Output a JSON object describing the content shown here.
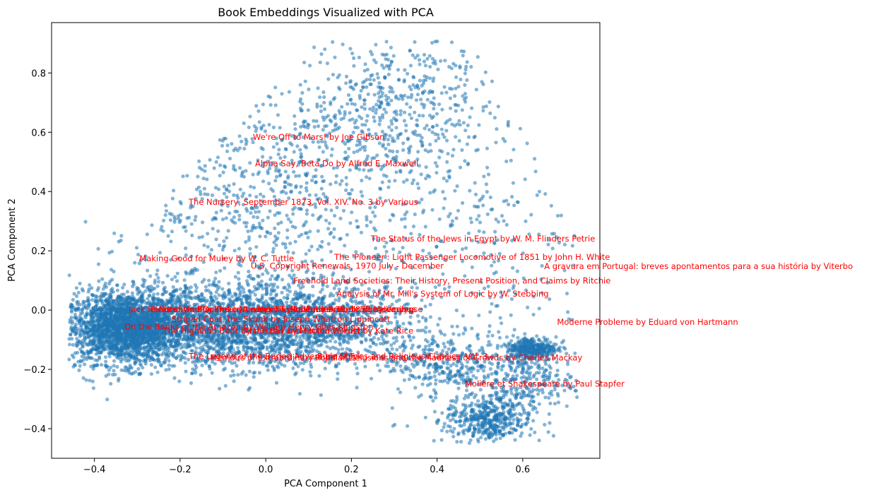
{
  "chart_data": {
    "type": "scatter",
    "title": "Book Embeddings Visualized with PCA",
    "xlabel": "PCA Component 1",
    "ylabel": "PCA Component 2",
    "xlim": [
      -0.5,
      0.78
    ],
    "ylim": [
      -0.5,
      0.97
    ],
    "x_ticks": [
      -0.4,
      -0.2,
      0.0,
      0.2,
      0.4,
      0.6
    ],
    "x_tick_labels": [
      "−0.4",
      "−0.2",
      "0.0",
      "0.2",
      "0.4",
      "0.6"
    ],
    "y_ticks": [
      -0.4,
      -0.2,
      0.0,
      0.2,
      0.4,
      0.6,
      0.8
    ],
    "y_tick_labels": [
      "−0.4",
      "−0.2",
      "0.0",
      "0.2",
      "0.4",
      "0.6",
      "0.8"
    ],
    "grid": false,
    "point_color": "#1f77b4",
    "label_color": "#ff0000",
    "clusters": [
      {
        "cx": -0.33,
        "cy": -0.06,
        "sx": 0.07,
        "sy": 0.06,
        "n": 2200
      },
      {
        "cx": -0.12,
        "cy": -0.05,
        "sx": 0.13,
        "sy": 0.07,
        "n": 1800
      },
      {
        "cx": 0.12,
        "cy": -0.05,
        "sx": 0.12,
        "sy": 0.07,
        "n": 1000
      },
      {
        "cx": 0.0,
        "cy": 0.4,
        "sx": 0.2,
        "sy": 0.2,
        "n": 900
      },
      {
        "cx": 0.3,
        "cy": 0.7,
        "sx": 0.12,
        "sy": 0.12,
        "n": 500
      },
      {
        "cx": 0.52,
        "cy": -0.37,
        "sx": 0.05,
        "sy": 0.04,
        "n": 450
      },
      {
        "cx": 0.62,
        "cy": -0.13,
        "sx": 0.03,
        "sy": 0.02,
        "n": 350
      },
      {
        "cx": 0.6,
        "cy": -0.24,
        "sx": 0.06,
        "sy": 0.05,
        "n": 250
      },
      {
        "cx": 0.42,
        "cy": -0.18,
        "sx": 0.07,
        "sy": 0.05,
        "n": 300
      },
      {
        "cx": 0.5,
        "cy": 0.2,
        "sx": 0.15,
        "sy": 0.25,
        "n": 300
      }
    ],
    "annotations": [
      {
        "text": "We're Off to Mars! by Joe Gibson",
        "x": -0.03,
        "y": 0.575
      },
      {
        "text": "Alpha Say, Beta Do by Alfred E. Maxwell",
        "x": -0.025,
        "y": 0.485
      },
      {
        "text": "The Nursery, September 1873, Vol. XIV. No. 3 by Various",
        "x": -0.18,
        "y": 0.355
      },
      {
        "text": "The Status of the Jews in Egypt by W. M. Flinders Petrie",
        "x": 0.245,
        "y": 0.232
      },
      {
        "text": "The 'Pioneer': Light Passenger Locomotive of 1851 by John H. White",
        "x": 0.16,
        "y": 0.17
      },
      {
        "text": "Making Good for Muley by W. C. Tuttle",
        "x": -0.295,
        "y": 0.165
      },
      {
        "text": "U.S. Copyright Renewals, 1970 July - December",
        "x": -0.035,
        "y": 0.14
      },
      {
        "text": "A gravura em Portugal: breves apontamentos para a sua história by Viterbo",
        "x": 0.65,
        "y": 0.138
      },
      {
        "text": "Freehold Land Societies: Their History, Present Position, and Claims by Ritchie",
        "x": 0.065,
        "y": 0.09
      },
      {
        "text": "Analysis of Mr. Mill's System of Logic by W. Stebbing",
        "x": 0.165,
        "y": 0.045
      },
      {
        "text": "Jack Harkaway's Boy Tinker Among The Turks by Bracebridge Hemyng",
        "x": -0.32,
        "y": -0.007
      },
      {
        "text": "Birds of the Rockies by Leander Sylvester Keyser",
        "x": -0.27,
        "y": -0.007
      },
      {
        "text": "Notes and Queries, Number 57, November 30, 1850 by Various",
        "x": -0.25,
        "y": -0.007
      },
      {
        "text": "Hymns and Poems, Book 73: Apocalypse",
        "x": -0.02,
        "y": -0.007
      },
      {
        "text": "Striped Coat, the Skunk by Joseph Wharton Lippincott",
        "x": -0.22,
        "y": -0.04
      },
      {
        "text": "On the Banks of the Amazon by William Henry Giles Kingston",
        "x": -0.33,
        "y": -0.065
      },
      {
        "text": "The Highland Bear by the Bay by Matilda Wrench",
        "x": -0.24,
        "y": -0.08
      },
      {
        "text": "The Hand and Fortune: Trust by Kate Rice",
        "x": -0.05,
        "y": -0.08
      },
      {
        "text": "The Legend of the Buried Adventure of Tyl",
        "x": -0.18,
        "y": -0.165
      },
      {
        "text": "Memoirs of Extraordinary Popular Delusions and the Madness of Crowds by Charles Mackay",
        "x": -0.13,
        "y": -0.17
      },
      {
        "text": "Bible Stories and Religious Classics, Vol. 3",
        "x": 0.12,
        "y": -0.165
      },
      {
        "text": "Moderne Probleme by Eduard von Hartmann",
        "x": 0.68,
        "y": -0.05
      },
      {
        "text": "Molière et Shakespeare by Paul Stapfer",
        "x": 0.465,
        "y": -0.258
      }
    ]
  }
}
